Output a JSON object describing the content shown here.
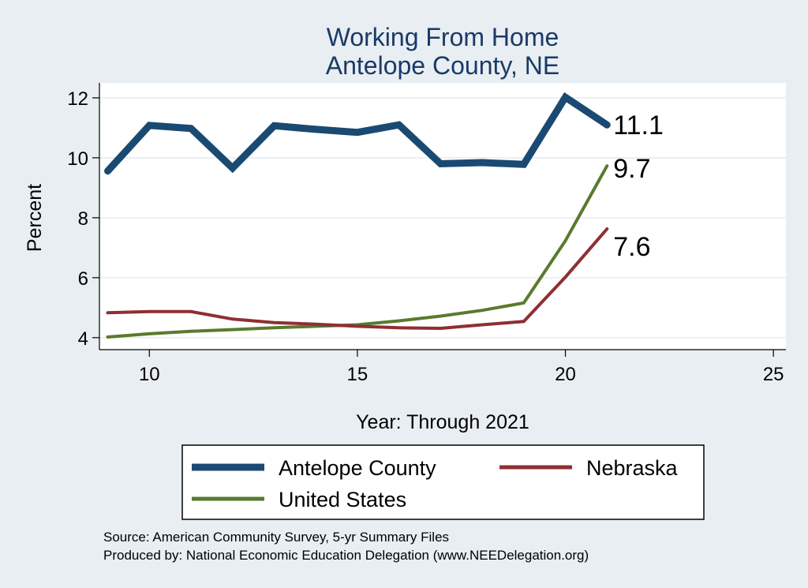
{
  "chart_data": {
    "type": "line",
    "title": [
      "Working From Home",
      "Antelope County, NE"
    ],
    "xlabel": "Year: Through 2021",
    "ylabel": "Percent",
    "xlim": [
      8.8,
      25.3
    ],
    "ylim": [
      3.6,
      12.5
    ],
    "xticks": [
      10,
      15,
      20,
      25
    ],
    "yticks": [
      4,
      6,
      8,
      10,
      12
    ],
    "grid": true,
    "legend_position": "bottom",
    "series": [
      {
        "name": "Antelope County",
        "color": "#1a4a72",
        "width": 9,
        "end_label": "11.1",
        "points": [
          [
            9,
            9.56
          ],
          [
            10,
            11.08
          ],
          [
            11,
            10.98
          ],
          [
            12,
            9.66
          ],
          [
            13,
            11.07
          ],
          [
            14,
            10.95
          ],
          [
            15,
            10.85
          ],
          [
            16,
            11.1
          ],
          [
            17,
            9.8
          ],
          [
            18,
            9.84
          ],
          [
            19,
            9.78
          ],
          [
            20,
            12.02
          ],
          [
            21,
            11.1
          ]
        ]
      },
      {
        "name": "Nebraska",
        "color": "#8f2f33",
        "width": 4,
        "end_label": "7.6",
        "points": [
          [
            9,
            4.83
          ],
          [
            10,
            4.87
          ],
          [
            11,
            4.87
          ],
          [
            12,
            4.62
          ],
          [
            13,
            4.5
          ],
          [
            14,
            4.45
          ],
          [
            15,
            4.38
          ],
          [
            16,
            4.33
          ],
          [
            17,
            4.31
          ],
          [
            18,
            4.43
          ],
          [
            19,
            4.54
          ],
          [
            20,
            6.02
          ],
          [
            21,
            7.63
          ]
        ]
      },
      {
        "name": "United States",
        "color": "#5a7a2e",
        "width": 4,
        "end_label": "9.7",
        "points": [
          [
            9,
            4.02
          ],
          [
            10,
            4.13
          ],
          [
            11,
            4.21
          ],
          [
            12,
            4.27
          ],
          [
            13,
            4.33
          ],
          [
            14,
            4.38
          ],
          [
            15,
            4.43
          ],
          [
            16,
            4.56
          ],
          [
            17,
            4.72
          ],
          [
            18,
            4.91
          ],
          [
            19,
            5.16
          ],
          [
            20,
            7.23
          ],
          [
            21,
            9.73
          ]
        ]
      }
    ]
  },
  "legend": {
    "items": [
      "Antelope County",
      "Nebraska",
      "United States"
    ]
  },
  "footer": {
    "line1": "Source: American Community Survey, 5-yr Summary Files",
    "line2": "Produced by: National Economic Education Delegation (www.NEEDelegation.org)"
  }
}
